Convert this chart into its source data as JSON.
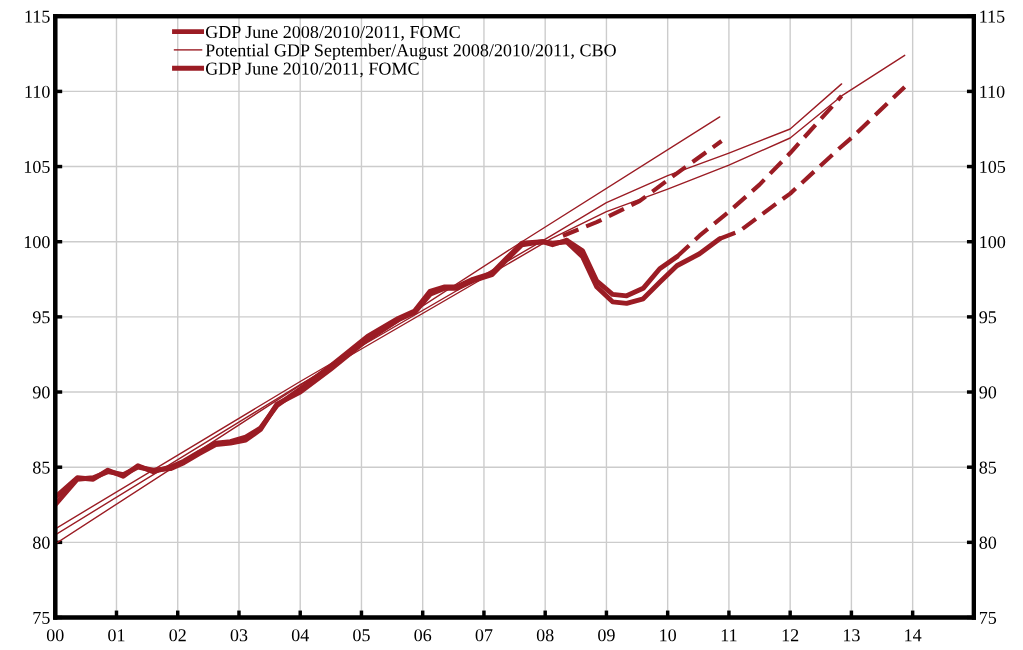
{
  "chart_data": {
    "type": "line",
    "xlim": [
      2000,
      2015
    ],
    "xticks": [
      {
        "value": 2000,
        "label": "00"
      },
      {
        "value": 2001,
        "label": "01"
      },
      {
        "value": 2002,
        "label": "02"
      },
      {
        "value": 2003,
        "label": "03"
      },
      {
        "value": 2004,
        "label": "04"
      },
      {
        "value": 2005,
        "label": "05"
      },
      {
        "value": 2006,
        "label": "06"
      },
      {
        "value": 2007,
        "label": "07"
      },
      {
        "value": 2008,
        "label": "08"
      },
      {
        "value": 2009,
        "label": "09"
      },
      {
        "value": 2010,
        "label": "10"
      },
      {
        "value": 2011,
        "label": "11"
      },
      {
        "value": 2012,
        "label": "12"
      },
      {
        "value": 2013,
        "label": "13"
      },
      {
        "value": 2014,
        "label": "14"
      }
    ],
    "ylim": [
      75,
      115
    ],
    "yticks": [
      75,
      80,
      85,
      90,
      95,
      100,
      105,
      110,
      115
    ],
    "y2lim": [
      75,
      115
    ],
    "y2ticks": [
      75,
      80,
      85,
      90,
      95,
      100,
      105,
      110,
      115
    ],
    "grid": true,
    "legend": "top left",
    "marker": "none",
    "series": [
      {
        "name": "GDP June 2008/2010/2011, FOMC",
        "color": "#9b1c24",
        "line_style": "solid",
        "x": [
          2000.0,
          2000.36,
          2000.62,
          2000.86,
          2001.11,
          2001.35,
          2001.6,
          2001.88,
          2002.1,
          2002.35,
          2002.62,
          2002.86,
          2003.11,
          2003.35,
          2003.62,
          2004.0,
          2004.49,
          2005.1,
          2005.6,
          2005.87,
          2006.12,
          2006.36,
          2006.56,
          2006.82,
          2007.13,
          2007.37,
          2007.62,
          2007.96,
          2008.12,
          2008.35
        ],
        "values": [
          83.0,
          84.3,
          84.2,
          84.8,
          84.4,
          85.1,
          84.7,
          85.0,
          85.4,
          86.0,
          86.6,
          86.7,
          87.0,
          87.6,
          89.1,
          90.2,
          91.7,
          93.7,
          94.9,
          95.4,
          96.7,
          97.0,
          97.0,
          97.5,
          97.9,
          98.9,
          99.9,
          100.0,
          99.8,
          100.1
        ]
      },
      {
        "name": "Potential GDP September/August 2008/2010/2011, CBO",
        "color": "#9b1c24",
        "line_style": "solid",
        "x": [
          2000.0,
          2007.62,
          2010.85
        ],
        "values": [
          79.9,
          100.0,
          108.3
        ]
      },
      {
        "name": "GDP June 2010/2011, FOMC",
        "color": "#9b1c24",
        "line_style": "solid",
        "x": [
          2008.35,
          2008.61,
          2008.84,
          2009.1,
          2009.33,
          2009.6,
          2009.87,
          2010.15
        ],
        "values": [
          100.1,
          99.4,
          97.4,
          96.5,
          96.4,
          96.9,
          98.2,
          99.0
        ]
      },
      {
        "color": "#9b1c24",
        "line_style": "solid",
        "x": [
          2000.0,
          2000.36,
          2000.62,
          2000.86,
          2001.11,
          2001.35,
          2001.6,
          2001.88,
          2002.1,
          2002.35,
          2002.62,
          2002.86,
          2003.11,
          2003.35,
          2003.62,
          2004.0,
          2004.49,
          2005.1,
          2005.6,
          2005.87,
          2006.12,
          2006.36,
          2006.56,
          2006.82,
          2007.13,
          2007.37,
          2007.62,
          2007.96,
          2008.12,
          2008.35,
          2008.61,
          2008.84,
          2009.1,
          2009.33,
          2009.6,
          2009.87,
          2010.15,
          2010.52,
          2010.85
        ],
        "values": [
          82.5,
          84.2,
          84.3,
          84.7,
          84.5,
          85.0,
          84.8,
          84.9,
          85.3,
          85.9,
          86.5,
          86.6,
          86.8,
          87.5,
          89.2,
          90.0,
          91.5,
          93.5,
          94.8,
          95.3,
          96.5,
          96.9,
          96.9,
          97.4,
          97.8,
          98.8,
          99.8,
          100.0,
          99.9,
          100.0,
          99.0,
          97.0,
          96.0,
          95.9,
          96.2,
          97.3,
          98.4,
          99.2,
          100.2
        ]
      },
      {
        "color": "#9b1c24",
        "line_style": "solid",
        "x": [
          2000.0,
          2004.0,
          2008.1,
          2009.0,
          2010.0,
          2011.0,
          2012.0,
          2012.84,
          2013.87
        ],
        "values": [
          80.5,
          90.5,
          100.2,
          102.0,
          103.5,
          105.1,
          106.9,
          109.7,
          112.4
        ]
      },
      {
        "color": "#9b1c24",
        "line_style": "solid",
        "x": [
          2000.0,
          2004.0,
          2008.1,
          2009.0,
          2010.0,
          2011.0,
          2012.0,
          2012.84
        ],
        "values": [
          80.9,
          90.7,
          100.4,
          102.6,
          104.4,
          105.9,
          107.5,
          110.5
        ]
      },
      {
        "color": "#9b1c24",
        "line_style": "dashed",
        "x": [
          2008.29,
          2008.84,
          2009.54,
          2010.2,
          2010.88
        ],
        "values": [
          100.4,
          101.3,
          102.7,
          104.7,
          106.7
        ]
      },
      {
        "color": "#9b1c24",
        "line_style": "dashed",
        "x": [
          2010.15,
          2010.52,
          2011.0,
          2011.5,
          2012.0,
          2012.84
        ],
        "values": [
          99.0,
          100.4,
          102.0,
          103.8,
          105.9,
          109.7
        ]
      },
      {
        "color": "#9b1c24",
        "line_style": "dashed",
        "x": [
          2010.85,
          2011.17,
          2011.5,
          2011.83,
          2012.0,
          2012.8,
          2013.0,
          2013.87
        ],
        "values": [
          100.2,
          100.7,
          101.7,
          102.7,
          103.2,
          106.2,
          106.9,
          110.3
        ]
      }
    ]
  }
}
